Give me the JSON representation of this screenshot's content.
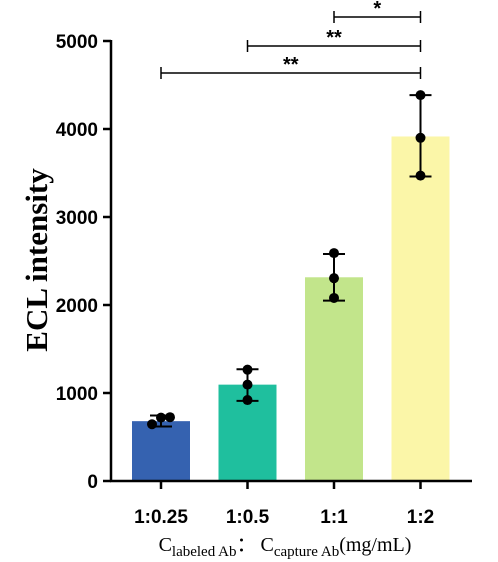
{
  "chart_data": {
    "type": "bar",
    "categories": [
      "1:0.25",
      "1:0.5",
      "1:1",
      "1:2"
    ],
    "values": [
      680,
      1095,
      2315,
      3915
    ],
    "error_bars": [
      [
        620,
        745
      ],
      [
        910,
        1270
      ],
      [
        2050,
        2580
      ],
      [
        3460,
        4385
      ]
    ],
    "points": [
      [
        645,
        720,
        725
      ],
      [
        920,
        1095,
        1265
      ],
      [
        2080,
        2305,
        2590
      ],
      [
        3470,
        3900,
        4385
      ]
    ],
    "colors": [
      "#3562b0",
      "#1fbf9e",
      "#c2e58b",
      "#fbf6a8"
    ],
    "ylabel": "ECL intensity",
    "xlabel": {
      "c1": "C",
      "c1_sub": "labeled Ab",
      "sep": "：",
      "c2": "C",
      "c2_sub": "capture Ab",
      "unit": "(mg/mL)"
    },
    "ylim": [
      0,
      5000
    ],
    "yticks": [
      0,
      1000,
      2000,
      3000,
      4000,
      5000
    ],
    "yticks_labels": [
      "0",
      "1000",
      "2000",
      "3000",
      "4000",
      "5000"
    ],
    "grid": false,
    "significance": [
      {
        "from": 2,
        "to": 3,
        "label": "*",
        "y": 4860
      },
      {
        "from": 1,
        "to": 3,
        "label": "**",
        "y": 4545
      },
      {
        "from": 0,
        "to": 3,
        "label": "**",
        "y": 4565
      }
    ]
  }
}
